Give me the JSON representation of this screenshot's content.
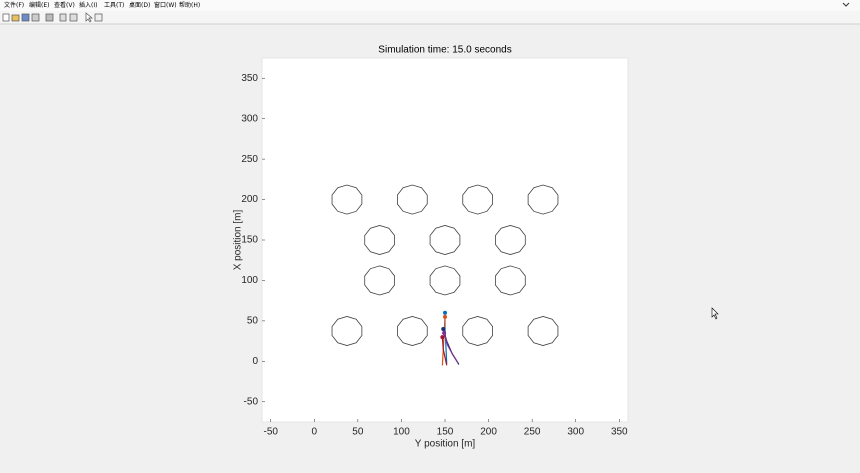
{
  "menu": [
    "文件(F)",
    "编辑(E)",
    "查看(V)",
    "插入(I)",
    "工具(T)",
    "桌面(D)",
    "窗口(W)",
    "帮助(H)"
  ],
  "chart_data": {
    "type": "line",
    "title": "Simulation time: 15.0 seconds",
    "xlabel": "Y position [m]",
    "ylabel": "X position [m]",
    "xlim": [
      -60,
      360
    ],
    "ylim": [
      -75,
      375
    ],
    "xticks": [
      -50,
      0,
      50,
      100,
      150,
      200,
      250,
      300,
      350
    ],
    "yticks": [
      -50,
      0,
      50,
      100,
      150,
      200,
      250,
      300,
      350
    ],
    "grid": false,
    "obstacle_radius": 18,
    "obstacle_color": "#404040",
    "obstacles": {
      "x": [
        75,
        150,
        225,
        37.5,
        112.5,
        187.5,
        262.5,
        75,
        150,
        225,
        37.5,
        112.5,
        187.5,
        262.5
      ],
      "y": [
        150,
        150,
        150,
        200,
        200,
        200,
        200,
        100,
        100,
        100,
        37.5,
        37.5,
        37.5,
        37.5
      ]
    },
    "series": [
      {
        "color": "#0072bd",
        "x": [
          150,
          150,
          151,
          152
        ],
        "values": [
          60,
          40,
          20,
          -3
        ]
      },
      {
        "color": "#d95319",
        "x": [
          150,
          149,
          148,
          147
        ],
        "values": [
          55,
          35,
          15,
          -5
        ]
      },
      {
        "color": "#1f2d6b",
        "x": [
          148,
          152,
          158,
          166
        ],
        "values": [
          40,
          25,
          10,
          -4
        ]
      },
      {
        "color": "#7e2f8e",
        "x": [
          149,
          153,
          159,
          165
        ],
        "values": [
          35,
          20,
          8,
          -2
        ]
      },
      {
        "color": "#a2142f",
        "x": [
          147,
          148,
          150,
          152
        ],
        "values": [
          30,
          15,
          5,
          -5
        ]
      }
    ]
  }
}
